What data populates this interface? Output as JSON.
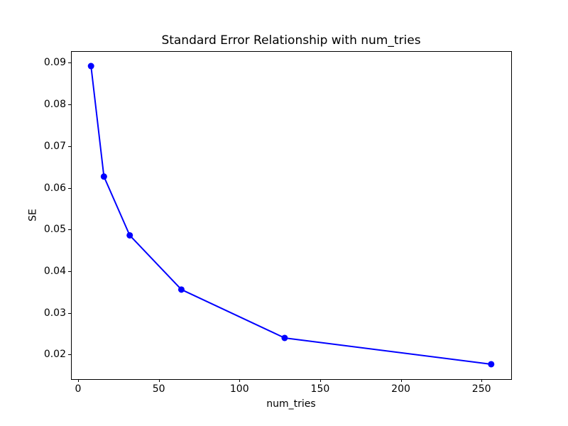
{
  "figure": {
    "background": "#ffffff",
    "axis_color": "#000000",
    "text_color": "#000000"
  },
  "chart_data": {
    "type": "line",
    "title": "Standard Error Relationship with num_tries",
    "xlabel": "num_tries",
    "ylabel": "SE",
    "x": [
      8,
      16,
      32,
      64,
      128,
      256
    ],
    "y": [
      0.0892,
      0.0627,
      0.0486,
      0.0356,
      0.024,
      0.0177
    ],
    "line_color": "#0000ff",
    "marker": "circle",
    "xlim": [
      -4.4,
      268.4
    ],
    "ylim": [
      0.01412,
      0.09278
    ],
    "xticks": [
      0,
      50,
      100,
      150,
      200,
      250
    ],
    "xtick_labels": [
      "0",
      "50",
      "100",
      "150",
      "200",
      "250"
    ],
    "yticks": [
      0.02,
      0.03,
      0.04,
      0.05,
      0.06,
      0.07,
      0.08,
      0.09
    ],
    "ytick_labels": [
      "0.02",
      "0.03",
      "0.04",
      "0.05",
      "0.06",
      "0.07",
      "0.08",
      "0.09"
    ],
    "grid": false,
    "legend": "none"
  }
}
